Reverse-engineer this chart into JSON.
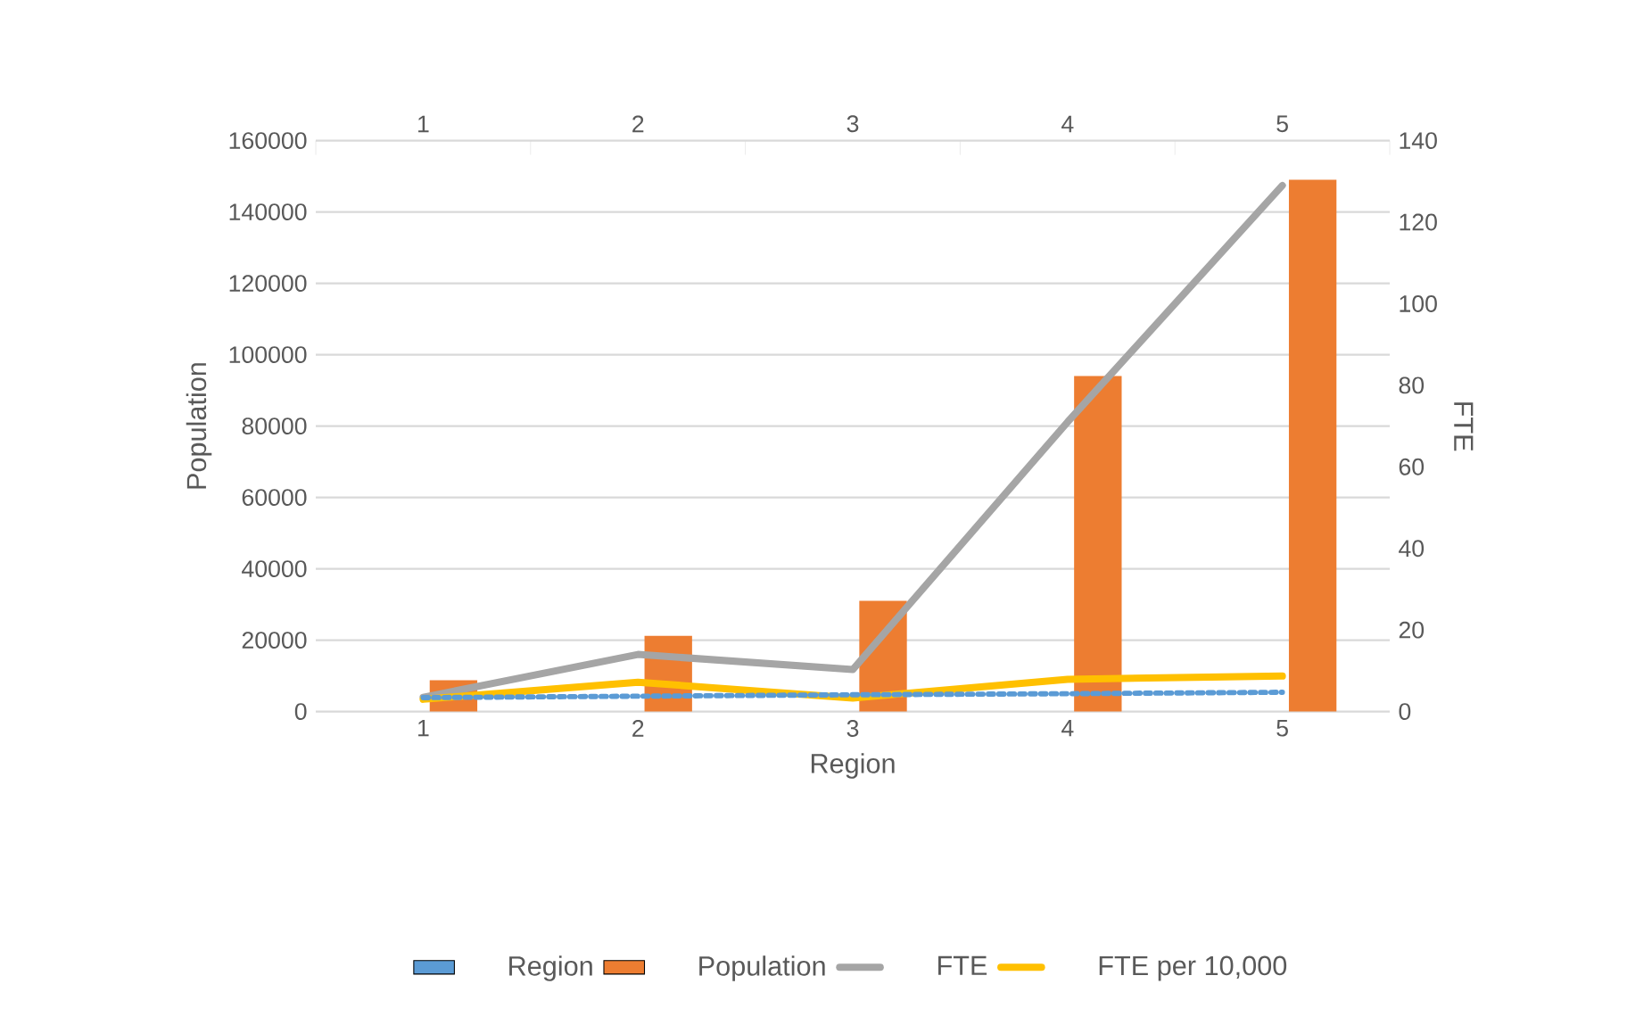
{
  "chart_data": {
    "type": "bar",
    "xlabel": "Region",
    "ylabel": "Population",
    "y2label": "FTE",
    "categories": [
      "1",
      "2",
      "3",
      "4",
      "5"
    ],
    "series": [
      {
        "name": "Region",
        "type": "line",
        "line_style": "dotted",
        "color": "#5b9bd5",
        "values": [
          3900,
          4300,
          4700,
          5000,
          5400
        ]
      },
      {
        "name": "Population",
        "color": "#ed7d31",
        "values": [
          8800,
          21200,
          31000,
          94000,
          149000
        ]
      },
      {
        "name": "FTE",
        "type": "line",
        "axis": "y2",
        "color": "#a5a5a5",
        "values": [
          3.5,
          14,
          10.3,
          71,
          129
        ]
      },
      {
        "name": "FTE per 10,000",
        "type": "line",
        "axis": "y2",
        "color": "#ffc000",
        "values": [
          3.0,
          7.2,
          3.3,
          7.9,
          8.7
        ]
      }
    ],
    "ylim": [
      0,
      160000
    ],
    "yticks": [
      0,
      20000,
      40000,
      60000,
      80000,
      100000,
      120000,
      140000,
      160000
    ],
    "y2lim": [
      0,
      140
    ],
    "y2ticks": [
      0,
      20,
      40,
      60,
      80,
      100,
      120,
      140
    ],
    "x2lim": [
      0.5,
      5.5
    ],
    "x2ticks": [
      1,
      2,
      3,
      4,
      5
    ],
    "grid": "y",
    "legend": "bottom"
  }
}
